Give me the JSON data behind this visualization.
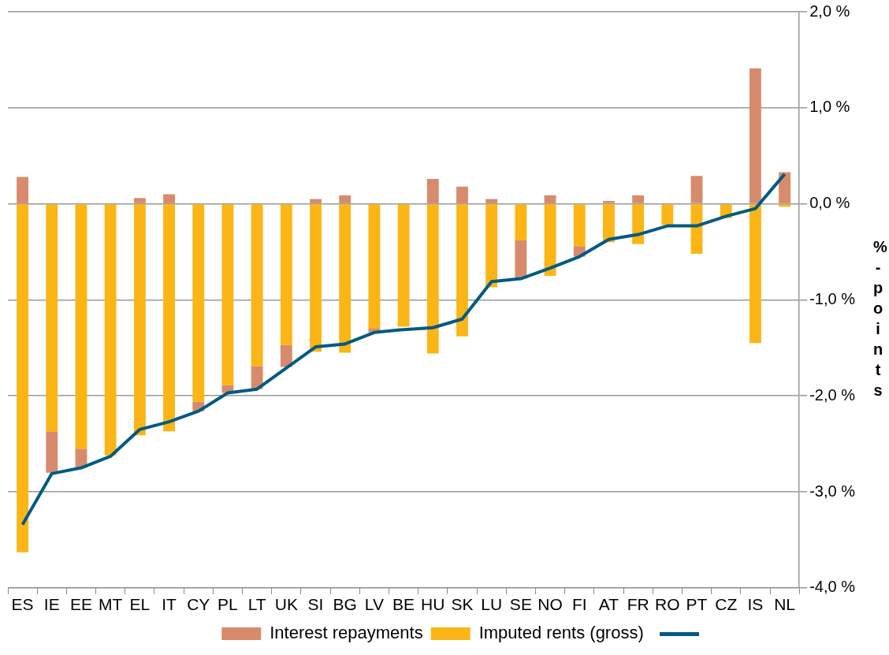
{
  "chart_data": {
    "type": "bar",
    "stacked": true,
    "ylabel": "%-points",
    "categories": [
      "ES",
      "IE",
      "EE",
      "MT",
      "EL",
      "IT",
      "CY",
      "PL",
      "LT",
      "UK",
      "SI",
      "BG",
      "LV",
      "BE",
      "HU",
      "SK",
      "LU",
      "SE",
      "NO",
      "FI",
      "AT",
      "FR",
      "RO",
      "PT",
      "CZ",
      "IS",
      "NL"
    ],
    "series": [
      {
        "name": "Imputed rents (gross)",
        "color": "#fbb516",
        "values": [
          -3.63,
          -2.37,
          -2.55,
          -2.62,
          -2.41,
          -2.37,
          -2.06,
          -1.89,
          -1.69,
          -1.47,
          -1.54,
          -1.55,
          -1.3,
          -1.28,
          -1.56,
          -1.38,
          -0.87,
          -0.38,
          -0.75,
          -0.44,
          -0.4,
          -0.42,
          -0.22,
          -0.52,
          -0.15,
          -1.45,
          -0.03
        ]
      },
      {
        "name": "Interest repayments",
        "color": "#d78b6c",
        "values": [
          0.28,
          -0.43,
          -0.2,
          null,
          0.06,
          0.1,
          -0.1,
          -0.08,
          -0.24,
          -0.23,
          0.05,
          0.09,
          -0.04,
          null,
          0.26,
          0.18,
          0.05,
          -0.4,
          0.09,
          -0.11,
          0.03,
          0.09,
          0,
          0.29,
          0,
          1.41,
          0.33
        ]
      },
      {
        "type": "line",
        "color": "#005a82",
        "values": [
          -3.34,
          -2.81,
          -2.75,
          -2.63,
          -2.35,
          -2.27,
          -2.16,
          -1.97,
          -1.93,
          -1.71,
          -1.49,
          -1.46,
          -1.34,
          -1.31,
          -1.29,
          -1.2,
          -0.81,
          -0.78,
          -0.67,
          -0.55,
          -0.37,
          -0.32,
          -0.23,
          -0.23,
          -0.13,
          -0.05,
          0.31
        ]
      }
    ],
    "ylim": [
      -4,
      2
    ],
    "yticks": [
      {
        "value": -4,
        "label": "-4,0 %"
      },
      {
        "value": -3,
        "label": "-3,0 %"
      },
      {
        "value": -2,
        "label": "-2,0 %"
      },
      {
        "value": -1,
        "label": "-1,0 %"
      },
      {
        "value": 0,
        "label": "0,0 %"
      },
      {
        "value": 1,
        "label": "1,0 %"
      },
      {
        "value": 2,
        "label": "2,0 %"
      }
    ],
    "grid": "y",
    "legend": "bottom",
    "marker": "none",
    "line_style": "solid"
  }
}
